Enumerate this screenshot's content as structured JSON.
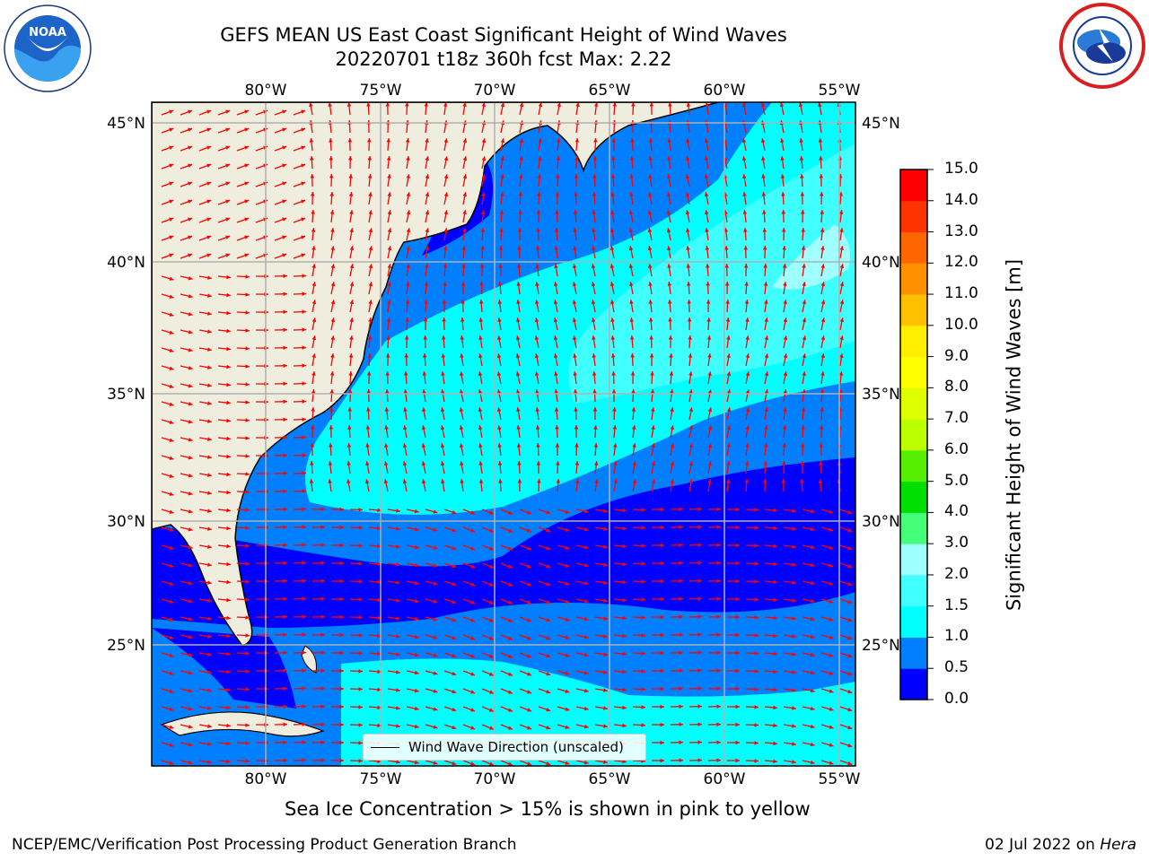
{
  "title_line1": "GEFS MEAN US East Coast Significant Height of Wind Waves",
  "title_line2": "20220701 t18z 360h fcst   Max: 2.22",
  "logo_left": "noaa-logo",
  "logo_right": "national-weather-service-logo",
  "axes": {
    "lon_labels": [
      "80°W",
      "75°W",
      "70°W",
      "65°W",
      "60°W",
      "55°W"
    ],
    "lat_labels": [
      "45°N",
      "40°N",
      "35°N",
      "30°N",
      "25°N"
    ]
  },
  "legend": {
    "label": "Wind Wave Direction (unscaled)"
  },
  "colorbar": {
    "title": "Significant Height of Wind Waves [m]",
    "ticks": [
      "15.0",
      "14.0",
      "13.0",
      "12.0",
      "11.0",
      "10.0",
      "9.0",
      "8.0",
      "7.0",
      "6.0",
      "5.0",
      "4.0",
      "3.0",
      "2.0",
      "1.5",
      "1.0",
      "0.5",
      "0.0"
    ],
    "colors": [
      "#0000ff",
      "#0080ff",
      "#00ffff",
      "#40ffff",
      "#a0ffff",
      "#44ff77",
      "#00e000",
      "#55ee00",
      "#bbff00",
      "#ddff00",
      "#ffff00",
      "#ffee00",
      "#ffc000",
      "#ff9000",
      "#ff6600",
      "#ff3300",
      "#ff0000"
    ]
  },
  "colors": {
    "land": "#efeddd",
    "arrow": "#ff0000",
    "grid": "#b0b0b0"
  },
  "note": "Sea Ice Concentration > 15% is shown in pink to yellow",
  "footer_left": "NCEP/EMC/Verification Post Processing Product Generation Branch",
  "footer_date": "02 Jul 2022 on",
  "footer_host": "Hera"
}
